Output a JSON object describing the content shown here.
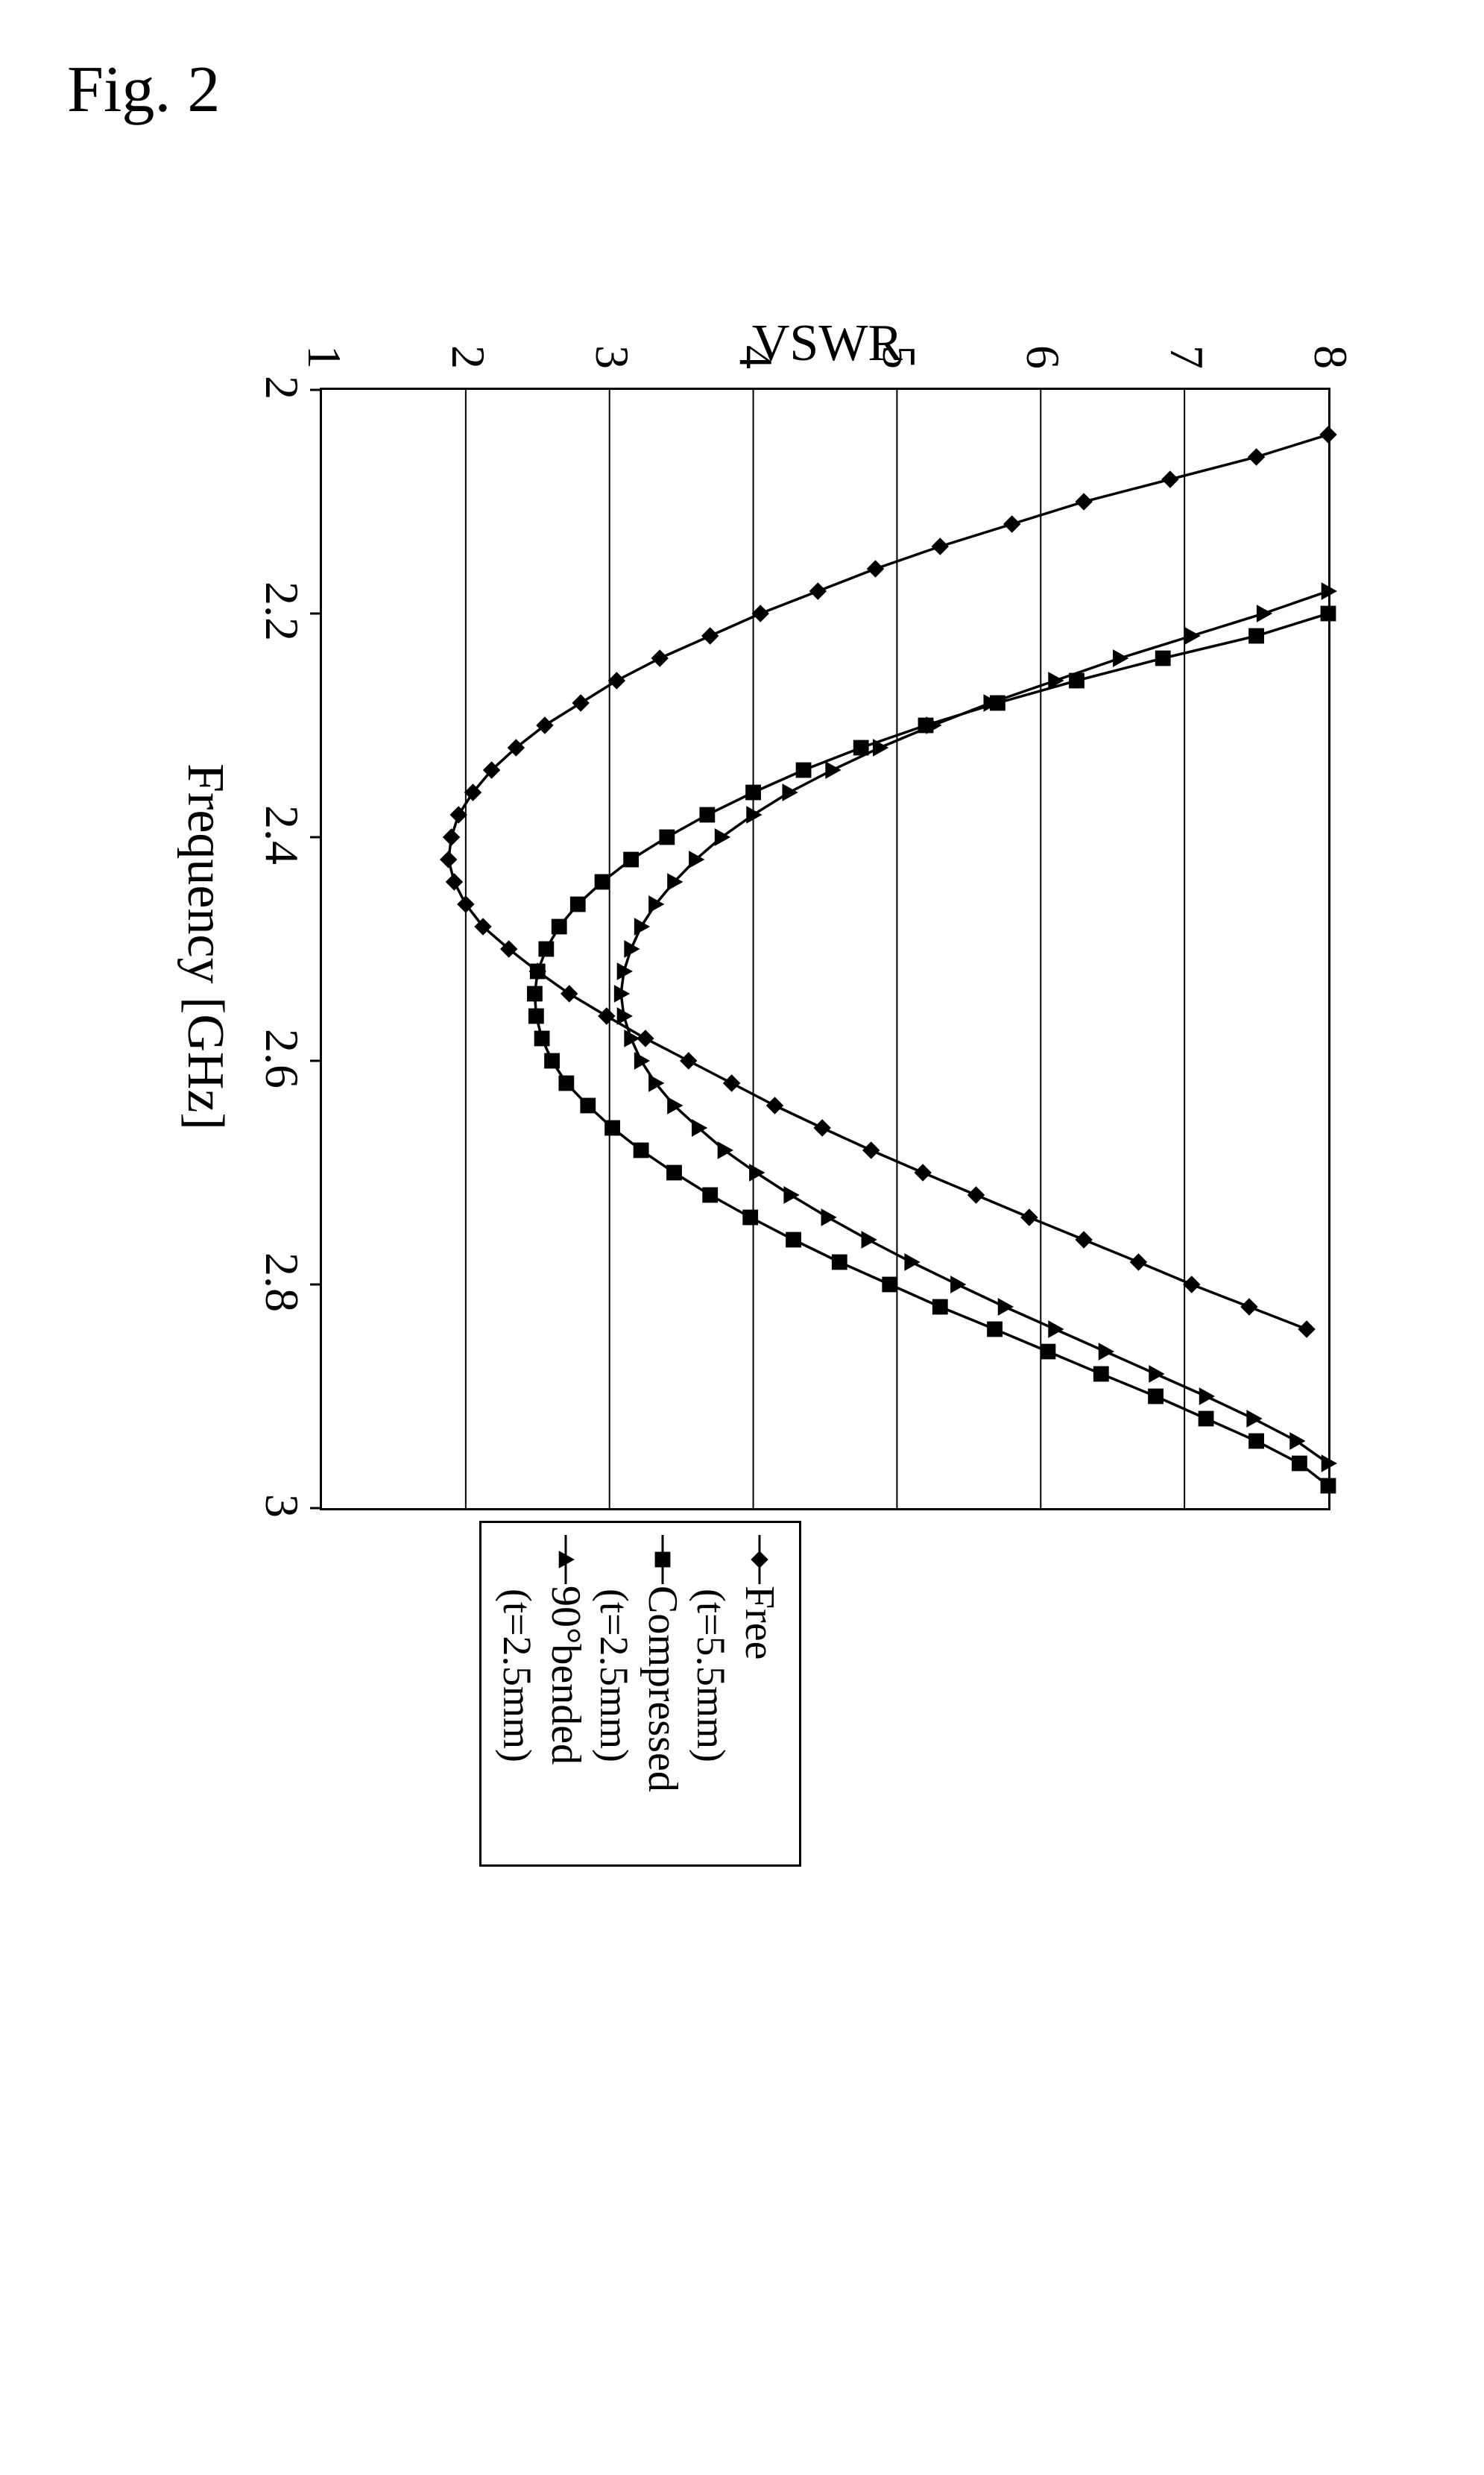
{
  "figure_label": "Fig. 2",
  "chart": {
    "type": "line",
    "xlabel": "Frequency [GHz]",
    "ylabel": "VSWR",
    "xlim": [
      2,
      3
    ],
    "ylim": [
      1,
      8
    ],
    "xtick_step": 0.2,
    "ytick_step": 1,
    "xticks": [
      2,
      2.2,
      2.4,
      2.6,
      2.8,
      3
    ],
    "xtick_labels": [
      "2",
      "2.2",
      "2.4",
      "2.6",
      "2.8",
      "3"
    ],
    "yticks": [
      1,
      2,
      3,
      4,
      5,
      6,
      7,
      8
    ],
    "ytick_labels": [
      "1",
      "2",
      "3",
      "4",
      "5",
      "6",
      "7",
      "8"
    ],
    "background_color": "#ffffff",
    "grid_color": "#000000",
    "line_color": "#000000",
    "line_width": 3.5,
    "marker_size": 11,
    "title_fontsize": 70,
    "tick_fontsize": 64,
    "series": [
      {
        "name": "Free",
        "sub": "(t=5.5mm)",
        "marker": "diamond",
        "points": [
          [
            2.04,
            8.0
          ],
          [
            2.06,
            7.5
          ],
          [
            2.08,
            6.9
          ],
          [
            2.1,
            6.3
          ],
          [
            2.12,
            5.8
          ],
          [
            2.14,
            5.3
          ],
          [
            2.16,
            4.85
          ],
          [
            2.18,
            4.45
          ],
          [
            2.2,
            4.05
          ],
          [
            2.22,
            3.7
          ],
          [
            2.24,
            3.35
          ],
          [
            2.26,
            3.05
          ],
          [
            2.28,
            2.8
          ],
          [
            2.3,
            2.55
          ],
          [
            2.32,
            2.35
          ],
          [
            2.34,
            2.18
          ],
          [
            2.36,
            2.05
          ],
          [
            2.38,
            1.95
          ],
          [
            2.4,
            1.9
          ],
          [
            2.42,
            1.88
          ],
          [
            2.44,
            1.92
          ],
          [
            2.46,
            2.0
          ],
          [
            2.48,
            2.12
          ],
          [
            2.5,
            2.3
          ],
          [
            2.52,
            2.5
          ],
          [
            2.54,
            2.72
          ],
          [
            2.56,
            2.98
          ],
          [
            2.58,
            3.25
          ],
          [
            2.6,
            3.55
          ],
          [
            2.62,
            3.85
          ],
          [
            2.64,
            4.15
          ],
          [
            2.66,
            4.48
          ],
          [
            2.68,
            4.82
          ],
          [
            2.7,
            5.18
          ],
          [
            2.72,
            5.55
          ],
          [
            2.74,
            5.92
          ],
          [
            2.76,
            6.3
          ],
          [
            2.78,
            6.68
          ],
          [
            2.8,
            7.05
          ],
          [
            2.82,
            7.45
          ],
          [
            2.84,
            7.85
          ]
        ]
      },
      {
        "name": "Compressed",
        "sub": "(t=2.5mm)",
        "marker": "square",
        "points": [
          [
            2.2,
            8.0
          ],
          [
            2.22,
            7.5
          ],
          [
            2.24,
            6.85
          ],
          [
            2.26,
            6.25
          ],
          [
            2.28,
            5.7
          ],
          [
            2.3,
            5.2
          ],
          [
            2.32,
            4.75
          ],
          [
            2.34,
            4.35
          ],
          [
            2.36,
            4.0
          ],
          [
            2.38,
            3.68
          ],
          [
            2.4,
            3.4
          ],
          [
            2.42,
            3.15
          ],
          [
            2.44,
            2.95
          ],
          [
            2.46,
            2.78
          ],
          [
            2.48,
            2.65
          ],
          [
            2.5,
            2.56
          ],
          [
            2.52,
            2.5
          ],
          [
            2.54,
            2.48
          ],
          [
            2.56,
            2.49
          ],
          [
            2.58,
            2.53
          ],
          [
            2.6,
            2.6
          ],
          [
            2.62,
            2.7
          ],
          [
            2.64,
            2.85
          ],
          [
            2.66,
            3.02
          ],
          [
            2.68,
            3.22
          ],
          [
            2.7,
            3.45
          ],
          [
            2.72,
            3.7
          ],
          [
            2.74,
            3.98
          ],
          [
            2.76,
            4.28
          ],
          [
            2.78,
            4.6
          ],
          [
            2.8,
            4.95
          ],
          [
            2.82,
            5.3
          ],
          [
            2.84,
            5.68
          ],
          [
            2.86,
            6.05
          ],
          [
            2.88,
            6.42
          ],
          [
            2.9,
            6.8
          ],
          [
            2.92,
            7.15
          ],
          [
            2.94,
            7.5
          ],
          [
            2.96,
            7.8
          ],
          [
            2.98,
            8.0
          ]
        ]
      },
      {
        "name": "90°bended",
        "sub": "(t=2.5mm)",
        "marker": "triangle",
        "points": [
          [
            2.18,
            8.0
          ],
          [
            2.2,
            7.55
          ],
          [
            2.22,
            7.05
          ],
          [
            2.24,
            6.55
          ],
          [
            2.26,
            6.1
          ],
          [
            2.28,
            5.65
          ],
          [
            2.3,
            5.25
          ],
          [
            2.32,
            4.88
          ],
          [
            2.34,
            4.55
          ],
          [
            2.36,
            4.25
          ],
          [
            2.38,
            4.0
          ],
          [
            2.4,
            3.78
          ],
          [
            2.42,
            3.6
          ],
          [
            2.44,
            3.45
          ],
          [
            2.46,
            3.32
          ],
          [
            2.48,
            3.22
          ],
          [
            2.5,
            3.15
          ],
          [
            2.52,
            3.1
          ],
          [
            2.54,
            3.08
          ],
          [
            2.56,
            3.1
          ],
          [
            2.58,
            3.15
          ],
          [
            2.6,
            3.22
          ],
          [
            2.62,
            3.32
          ],
          [
            2.64,
            3.45
          ],
          [
            2.66,
            3.62
          ],
          [
            2.68,
            3.8
          ],
          [
            2.7,
            4.02
          ],
          [
            2.72,
            4.26
          ],
          [
            2.74,
            4.52
          ],
          [
            2.76,
            4.8
          ],
          [
            2.78,
            5.1
          ],
          [
            2.8,
            5.42
          ],
          [
            2.82,
            5.75
          ],
          [
            2.84,
            6.1
          ],
          [
            2.86,
            6.45
          ],
          [
            2.88,
            6.8
          ],
          [
            2.9,
            7.15
          ],
          [
            2.92,
            7.48
          ],
          [
            2.94,
            7.78
          ],
          [
            2.96,
            8.0
          ]
        ]
      }
    ]
  },
  "legend": {
    "items": [
      {
        "label": "Free",
        "sub": "(t=5.5mm)",
        "marker": "diamond"
      },
      {
        "label": "Compressed",
        "sub": "(t=2.5mm)",
        "marker": "square"
      },
      {
        "label": "90°bended",
        "sub": "(t=2.5mm)",
        "marker": "triangle"
      }
    ]
  }
}
